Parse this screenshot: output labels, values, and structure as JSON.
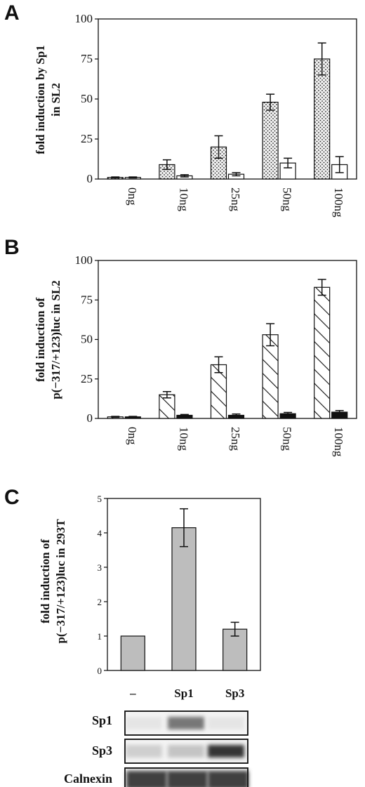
{
  "chart_data": [
    {
      "panel": "A",
      "type": "bar",
      "ylabel_line1": "fold induction by Sp1",
      "ylabel_line2": "in SL2",
      "categories": [
        "0ng",
        "10ng",
        "25ng",
        "50ng",
        "100ng"
      ],
      "ylim": [
        0,
        100
      ],
      "yticks": [
        "0",
        "25",
        "50",
        "75",
        "100"
      ],
      "series": [
        {
          "pattern": "dots",
          "values": [
            1,
            9,
            20,
            48,
            75
          ],
          "errors": [
            0.3,
            3,
            7,
            5,
            10
          ]
        },
        {
          "pattern": "open",
          "values": [
            1,
            2,
            3,
            10,
            9
          ],
          "errors": [
            0.3,
            0.7,
            1,
            3,
            5
          ]
        }
      ]
    },
    {
      "panel": "B",
      "type": "bar",
      "ylabel_line1": "fold induction of",
      "ylabel_line2": "p(−317/+123)luc in SL2",
      "categories": [
        "0ng",
        "10ng",
        "25ng",
        "50ng",
        "100ng"
      ],
      "ylim": [
        0,
        100
      ],
      "yticks": [
        "0",
        "25",
        "50",
        "75",
        "100"
      ],
      "series": [
        {
          "pattern": "hatch",
          "values": [
            1,
            15,
            34,
            53,
            83
          ],
          "errors": [
            0.3,
            2,
            5,
            7,
            5
          ]
        },
        {
          "pattern": "solid",
          "values": [
            1,
            2,
            2,
            3,
            4
          ],
          "errors": [
            0.3,
            0.5,
            0.8,
            0.8,
            1
          ]
        }
      ]
    },
    {
      "panel": "C",
      "type": "bar",
      "ylabel_line1": "fold induction of",
      "ylabel_line2": "p(−317/+123)luc in 293T",
      "categories": [
        "–",
        "Sp1",
        "Sp3"
      ],
      "ylim": [
        0,
        5
      ],
      "yticks": [
        "0",
        "1",
        "2",
        "3",
        "4",
        "5"
      ],
      "series": [
        {
          "pattern": "gray",
          "values": [
            1.0,
            4.15,
            1.2
          ],
          "errors": [
            0,
            0.55,
            0.2
          ]
        }
      ]
    }
  ],
  "blot": {
    "rows": [
      {
        "label": "Sp1",
        "intensities": [
          0.05,
          0.55,
          0.05
        ]
      },
      {
        "label": "Sp3",
        "intensities": [
          0.15,
          0.2,
          0.85
        ]
      },
      {
        "label": "Calnexin",
        "intensities": [
          0.8,
          0.8,
          0.8
        ]
      }
    ]
  }
}
